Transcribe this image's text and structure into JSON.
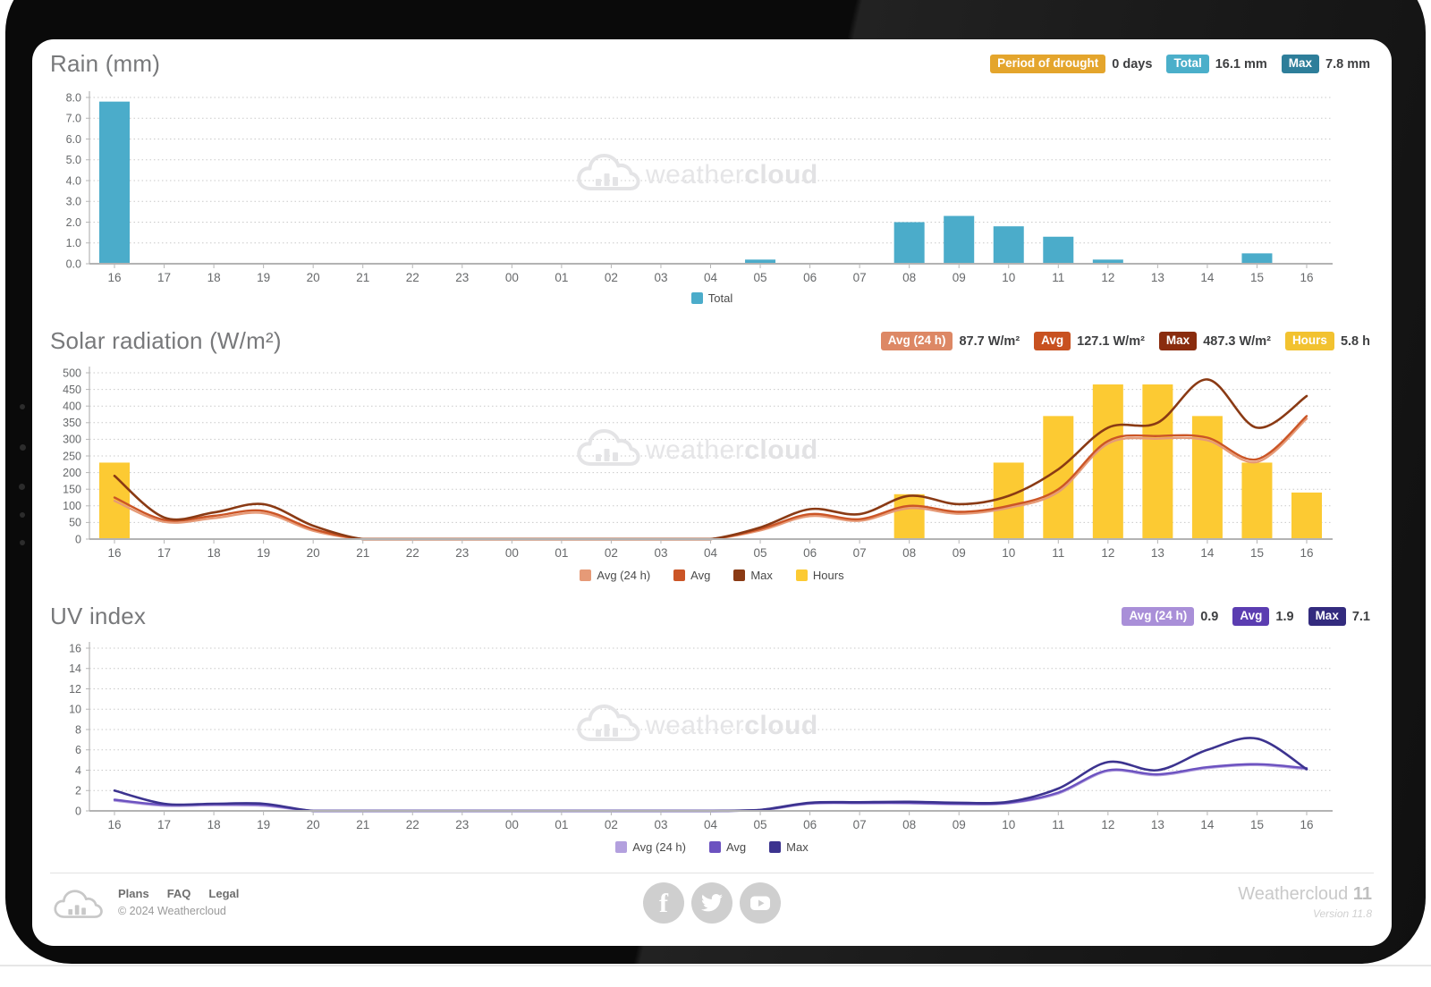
{
  "watermark": {
    "light": "weather",
    "bold": "cloud"
  },
  "sections": {
    "rain": {
      "title": "Rain (mm)",
      "badges": [
        {
          "label": "Period of drought",
          "value": "0 days",
          "color": "#e4a52c"
        },
        {
          "label": "Total",
          "value": "16.1 mm",
          "color": "#4bafca"
        },
        {
          "label": "Max",
          "value": "7.8 mm",
          "color": "#2e7e9a"
        }
      ]
    },
    "solar": {
      "title": "Solar radiation (W/m²)",
      "badges": [
        {
          "label": "Avg (24 h)",
          "value": "87.7 W/m²",
          "color": "#dd8865"
        },
        {
          "label": "Avg",
          "value": "127.1 W/m²",
          "color": "#c85120"
        },
        {
          "label": "Max",
          "value": "487.3 W/m²",
          "color": "#8a2c0e"
        },
        {
          "label": "Hours",
          "value": "5.8 h",
          "color": "#f2c230"
        }
      ]
    },
    "uv": {
      "title": "UV index",
      "badges": [
        {
          "label": "Avg (24 h)",
          "value": "0.9",
          "color": "#a98fd8"
        },
        {
          "label": "Avg",
          "value": "1.9",
          "color": "#5b3db1"
        },
        {
          "label": "Max",
          "value": "7.1",
          "color": "#332b7e"
        }
      ]
    }
  },
  "chart_data": [
    {
      "id": "rain",
      "type": "bar",
      "title": "Rain (mm)",
      "ylim": [
        0,
        8
      ],
      "ytick_step": 1,
      "grid": true,
      "legend_position": "bottom",
      "categories": [
        "16",
        "17",
        "18",
        "19",
        "20",
        "21",
        "22",
        "23",
        "00",
        "01",
        "02",
        "03",
        "04",
        "05",
        "06",
        "07",
        "08",
        "09",
        "10",
        "11",
        "12",
        "13",
        "14",
        "15",
        "16"
      ],
      "series": [
        {
          "name": "Total",
          "kind": "bar",
          "color": "#4bacca",
          "values": [
            7.8,
            0,
            0,
            0,
            0,
            0,
            0,
            0,
            0,
            0,
            0,
            0,
            0,
            0.2,
            0,
            0,
            2.0,
            2.3,
            1.8,
            1.3,
            0.2,
            0,
            0,
            0.5,
            0
          ]
        }
      ]
    },
    {
      "id": "solar",
      "type": "combo",
      "title": "Solar radiation (W/m²)",
      "ylim": [
        0,
        500
      ],
      "ytick_step": 50,
      "grid": true,
      "legend_position": "bottom",
      "categories": [
        "16",
        "17",
        "18",
        "19",
        "20",
        "21",
        "22",
        "23",
        "00",
        "01",
        "02",
        "03",
        "04",
        "05",
        "06",
        "07",
        "08",
        "09",
        "10",
        "11",
        "12",
        "13",
        "14",
        "15",
        "16"
      ],
      "series": [
        {
          "name": "Avg (24 h)",
          "kind": "line",
          "color": "#e69a77",
          "values": [
            115,
            52,
            63,
            78,
            25,
            0,
            0,
            0,
            0,
            0,
            0,
            0,
            0,
            26,
            69,
            55,
            93,
            76,
            94,
            142,
            287,
            302,
            297,
            232,
            362
          ]
        },
        {
          "name": "Avg",
          "kind": "line",
          "color": "#cb5526",
          "values": [
            125,
            58,
            70,
            85,
            30,
            0,
            0,
            0,
            0,
            0,
            0,
            0,
            0,
            30,
            75,
            60,
            100,
            82,
            100,
            150,
            295,
            310,
            305,
            240,
            370
          ]
        },
        {
          "name": "Max",
          "kind": "line",
          "color": "#8a3a14",
          "values": [
            190,
            65,
            80,
            105,
            40,
            0,
            0,
            0,
            0,
            0,
            0,
            0,
            0,
            35,
            90,
            75,
            130,
            105,
            130,
            210,
            335,
            350,
            480,
            335,
            430
          ]
        },
        {
          "name": "Hours",
          "kind": "bar",
          "color": "#fcca33",
          "values": [
            230,
            0,
            0,
            0,
            0,
            0,
            0,
            0,
            0,
            0,
            0,
            0,
            0,
            0,
            0,
            0,
            135,
            0,
            230,
            370,
            465,
            465,
            370,
            230,
            140
          ]
        }
      ]
    },
    {
      "id": "uv",
      "type": "line",
      "title": "UV index",
      "ylim": [
        0,
        16
      ],
      "ytick_step": 2,
      "grid": true,
      "legend_position": "bottom",
      "categories": [
        "16",
        "17",
        "18",
        "19",
        "20",
        "21",
        "22",
        "23",
        "00",
        "01",
        "02",
        "03",
        "04",
        "05",
        "06",
        "07",
        "08",
        "09",
        "10",
        "11",
        "12",
        "13",
        "14",
        "15",
        "16"
      ],
      "series": [
        {
          "name": "Avg (24 h)",
          "kind": "line",
          "color": "#b3a0de",
          "values": [
            1.0,
            0.5,
            0.55,
            0.5,
            0,
            0,
            0,
            0,
            0,
            0,
            0,
            0,
            0,
            0.05,
            0.7,
            0.75,
            0.75,
            0.65,
            0.75,
            1.7,
            3.9,
            3.5,
            4.2,
            4.5,
            4.1
          ]
        },
        {
          "name": "Avg",
          "kind": "line",
          "color": "#6c52c0",
          "values": [
            1.1,
            0.6,
            0.65,
            0.6,
            0,
            0,
            0,
            0,
            0,
            0,
            0,
            0,
            0,
            0.1,
            0.75,
            0.8,
            0.8,
            0.7,
            0.8,
            1.8,
            4.0,
            3.6,
            4.3,
            4.6,
            4.2
          ]
        },
        {
          "name": "Max",
          "kind": "line",
          "color": "#3c338f",
          "values": [
            2.0,
            0.7,
            0.7,
            0.7,
            0,
            0,
            0,
            0,
            0,
            0,
            0,
            0,
            0,
            0.1,
            0.8,
            0.85,
            0.9,
            0.8,
            0.9,
            2.2,
            4.8,
            4.0,
            6.0,
            7.1,
            4.1
          ]
        }
      ]
    }
  ],
  "footer": {
    "links": [
      "Plans",
      "FAQ",
      "Legal"
    ],
    "copyright": "© 2024 Weathercloud",
    "app_name": "Weathercloud",
    "app_major": "11",
    "version": "Version 11.8"
  }
}
